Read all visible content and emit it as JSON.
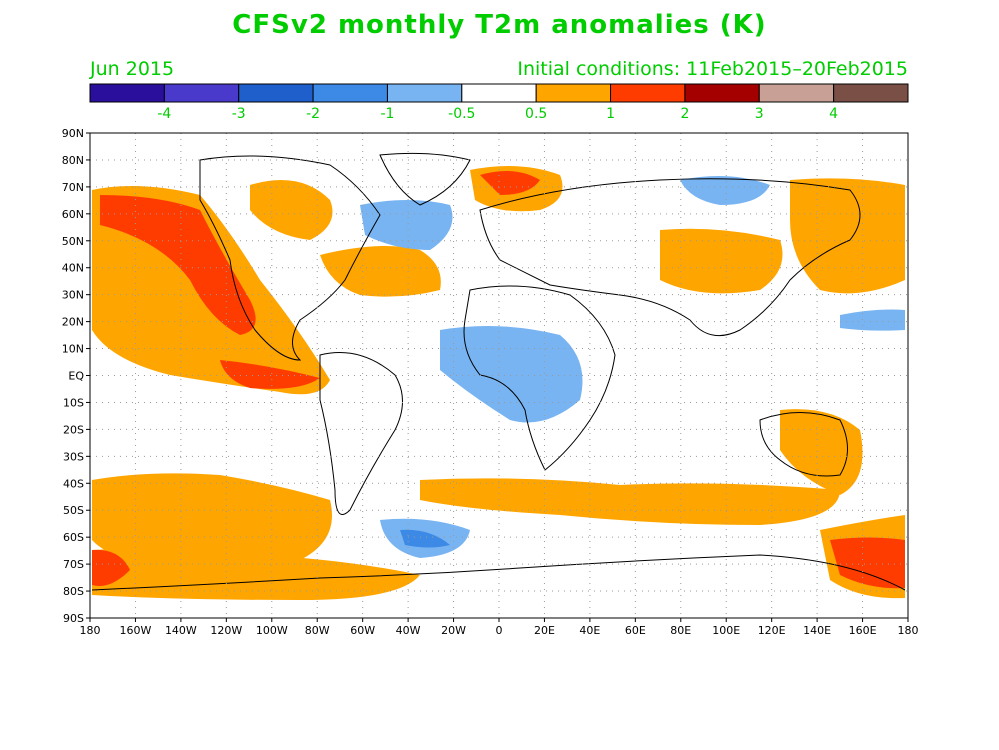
{
  "title": "CFSv2 monthly T2m anomalies (K)",
  "forecast_month": "Jun 2015",
  "initial_conditions": "Initial conditions: 11Feb2015–20Feb2015",
  "colorbar": {
    "colors": [
      "#2a0f9c",
      "#4a3acc",
      "#1f5fcc",
      "#3d8ae6",
      "#78b4f2",
      "#ffffff",
      "#ffa500",
      "#ff3c00",
      "#a50000",
      "#c8a096",
      "#7a5046"
    ],
    "labels": [
      "-4",
      "-3",
      "-2",
      "-1",
      "-0.5",
      "0.5",
      "1",
      "2",
      "3",
      "4"
    ]
  },
  "axes": {
    "lat_labels": [
      "90N",
      "80N",
      "70N",
      "60N",
      "50N",
      "40N",
      "30N",
      "20N",
      "10N",
      "EQ",
      "10S",
      "20S",
      "30S",
      "40S",
      "50S",
      "60S",
      "70S",
      "80S",
      "90S"
    ],
    "lon_labels": [
      "180",
      "160W",
      "140W",
      "120W",
      "100W",
      "80W",
      "60W",
      "40W",
      "20W",
      "0",
      "20E",
      "40E",
      "60E",
      "80E",
      "100E",
      "120E",
      "140E",
      "160E",
      "180"
    ]
  }
}
